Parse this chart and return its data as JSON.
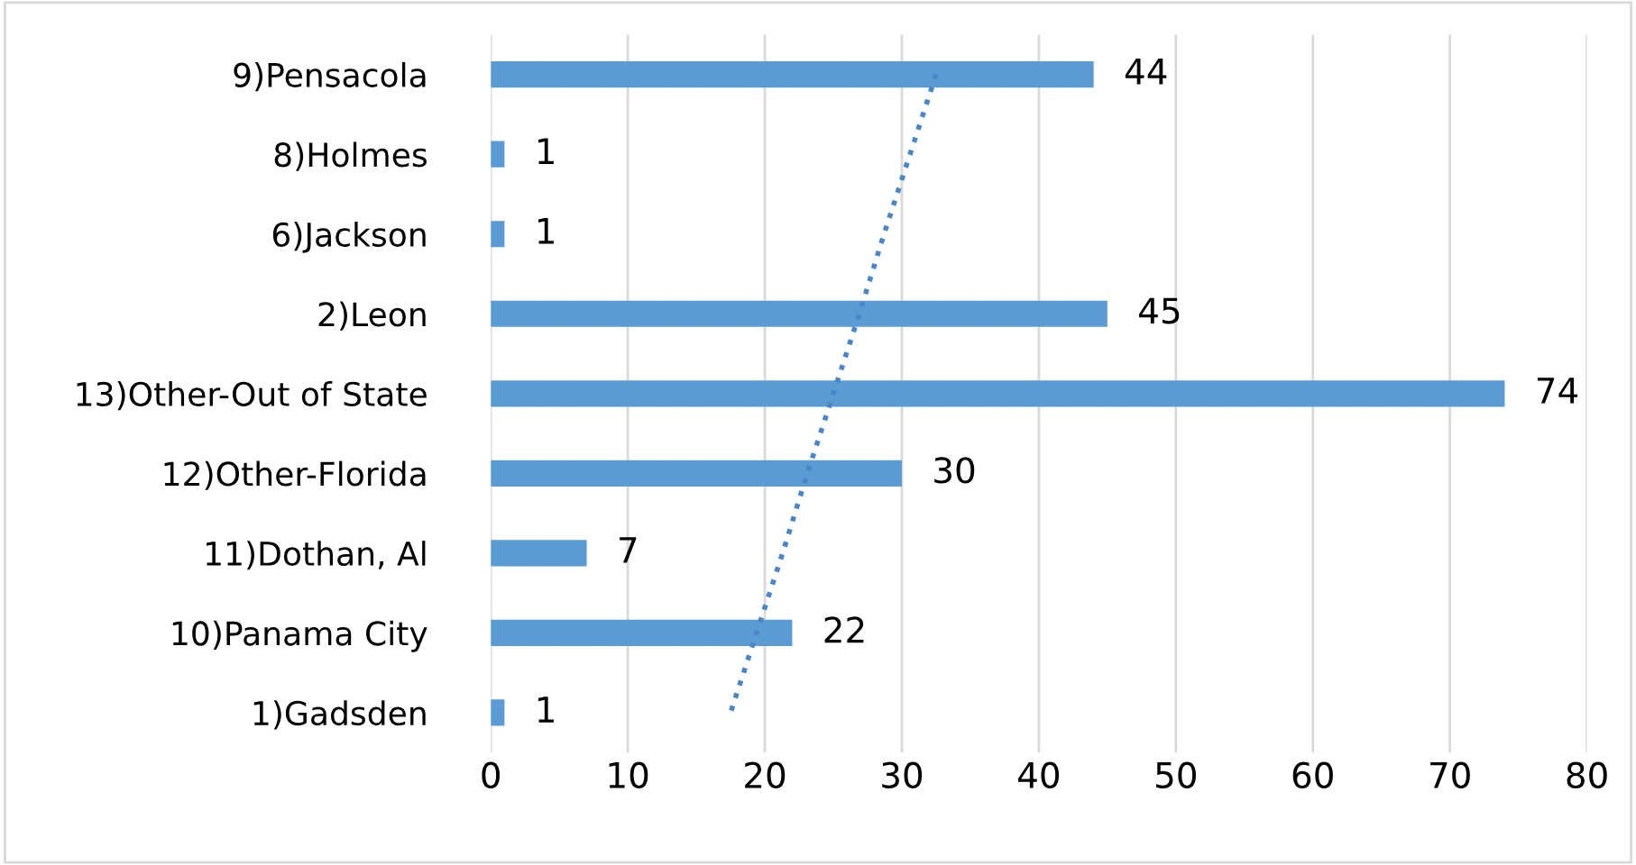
{
  "chart_data": {
    "type": "bar",
    "orientation": "horizontal",
    "categories": [
      "9)Pensacola",
      "8)Holmes",
      "6)Jackson",
      "2)Leon",
      "13)Other-Out of State",
      "12)Other-Florida",
      "11)Dothan, Al",
      "10)Panama City",
      "1)Gadsden"
    ],
    "series": [
      {
        "color": "#5b9bd5",
        "values": [
          44,
          1,
          1,
          45,
          74,
          30,
          7,
          22,
          1
        ],
        "value_labels": [
          "44",
          "1",
          "1",
          "45",
          "74",
          "30",
          "7",
          "22",
          "1"
        ]
      },
      {
        "type": "line",
        "color": "#4a86c5",
        "line_style": "dotted",
        "values": [
          32.5,
          30.6,
          28.7,
          26.9,
          25.0,
          23.1,
          21.3,
          19.4,
          17.5
        ]
      }
    ],
    "xlim": [
      0,
      80
    ],
    "xticks": [
      0,
      10,
      20,
      30,
      40,
      50,
      60,
      70,
      80
    ],
    "grid": "x"
  }
}
